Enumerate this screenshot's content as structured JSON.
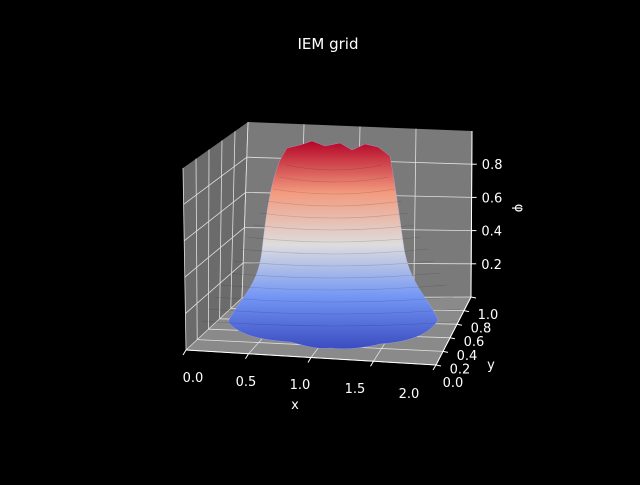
{
  "chart_data": {
    "type": "surface",
    "title": "IEM grid",
    "xlabel": "x",
    "ylabel": "y",
    "zlabel": "φ",
    "xlim": [
      0.0,
      2.0
    ],
    "ylim": [
      0.0,
      1.0
    ],
    "zlim": [
      0.0,
      1.0
    ],
    "x_ticks": [
      "0.0",
      "0.5",
      "1.0",
      "1.5",
      "2.0"
    ],
    "y_ticks": [
      "0.0",
      "0.2",
      "0.4",
      "0.6",
      "0.8",
      "1.0"
    ],
    "z_ticks": [
      "0.2",
      "0.4",
      "0.6",
      "0.8"
    ],
    "z_tick_values": [
      0.2,
      0.4,
      0.6,
      0.8
    ],
    "peak_value": 0.95,
    "colormap": "coolwarm",
    "colors": {
      "background": "#000000",
      "pane": "#7a7a7a",
      "grid": "#e0e0e0",
      "low": "#3b4cc0",
      "mid": "#dddddd",
      "high": "#b40426"
    }
  }
}
